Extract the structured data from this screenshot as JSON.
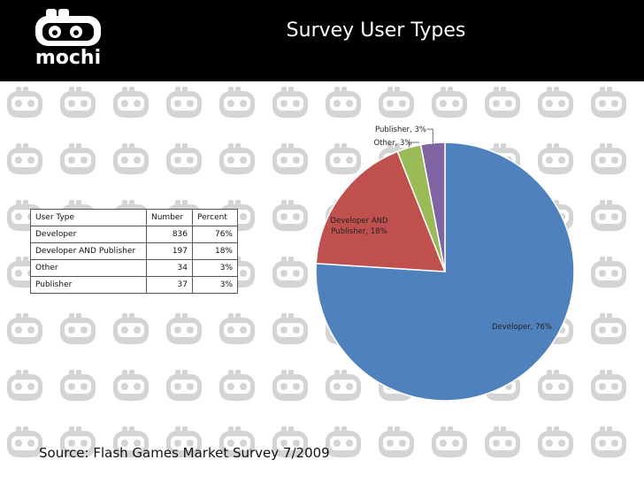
{
  "header": {
    "title": "Survey User Types",
    "logo_text": "mochi"
  },
  "table": {
    "columns": [
      "User Type",
      "Number",
      "Percent"
    ],
    "rows": [
      [
        "Developer",
        "836",
        "76%"
      ],
      [
        "Developer AND Publisher",
        "197",
        "18%"
      ],
      [
        "Other",
        "34",
        "3%"
      ],
      [
        "Publisher",
        "37",
        "3%"
      ]
    ]
  },
  "chart_data": {
    "type": "pie",
    "title": "",
    "slices": [
      {
        "label": "Developer, 76%",
        "value": 76,
        "color": "#4f81bd"
      },
      {
        "label": "Developer AND Publisher, 18%",
        "value": 18,
        "color": "#c0504d"
      },
      {
        "label": "Other, 3%",
        "value": 3,
        "color": "#9bbb59"
      },
      {
        "label": "Publisher, 3%",
        "value": 3,
        "color": "#8064a2"
      }
    ]
  },
  "footer": {
    "source": "Source: Flash Games Market Survey 7/2009"
  }
}
